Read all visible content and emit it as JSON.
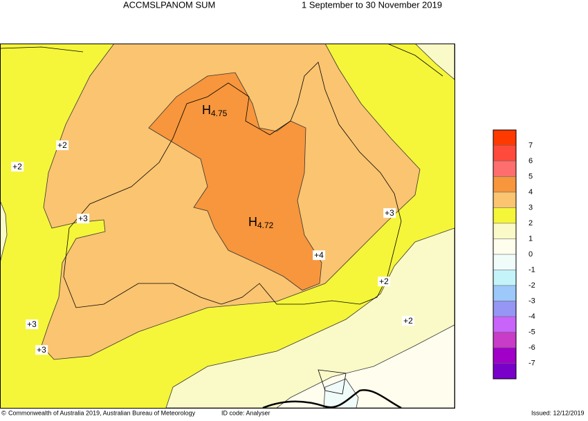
{
  "header": {
    "title": "ACCMSLPANOM SUM",
    "period": "1 September to 30 November 2019"
  },
  "highs": [
    {
      "letter": "H",
      "value": "4.75"
    },
    {
      "letter": "H",
      "value": "4.72"
    }
  ],
  "contour_labels": [
    "+2",
    "+2",
    "+3",
    "+3",
    "+4",
    "+2",
    "+2",
    "+3",
    "+3"
  ],
  "legend": {
    "labels": [
      "7",
      "6",
      "5",
      "4",
      "3",
      "2",
      "1",
      "0",
      "-1",
      "-2",
      "-3",
      "-4",
      "-5",
      "-6",
      "-7"
    ],
    "colors": [
      "#ff3a00",
      "#ff4a3c",
      "#ff6e6e",
      "#f7963c",
      "#fac470",
      "#f5f53a",
      "#fafac8",
      "#fffded",
      "#f0fcfa",
      "#c4f4fa",
      "#9cc8fa",
      "#9696f5",
      "#c864fa",
      "#c83cc8",
      "#a000c8",
      "#7800c8"
    ]
  },
  "footer": {
    "copyright": "Commonwealth of Australia 2019, Australian Bureau of Meteorology",
    "id_code": "ID code: Analyser",
    "issued": "Issued: 12/12/2019"
  }
}
